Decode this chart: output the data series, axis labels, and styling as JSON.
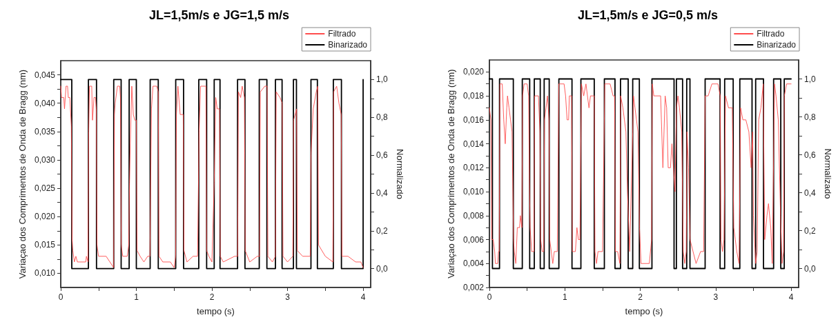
{
  "chart_data": [
    {
      "type": "line",
      "title": "JL=1,5m/s e JG=1,5 m/s",
      "xlabel": "tempo (s)",
      "ylabel": "Variaçao dos Comprimentos de Onda de Bragg (nm)",
      "y2label": "Normalizado",
      "legend": "top right",
      "grid": false,
      "marker": "none",
      "xlim": [
        0,
        4.1
      ],
      "xticks": [
        0,
        {
          "value": 0.5,
          "label": null
        },
        1,
        {
          "value": 1.5,
          "label": null
        },
        2,
        {
          "value": 2.5,
          "label": null
        },
        3,
        {
          "value": 3.5,
          "label": null
        },
        4
      ],
      "ylim": [
        0.0075,
        0.0475
      ],
      "yticks": [
        {
          "value": 0.01,
          "label": "0,010"
        },
        {
          "value": 0.0125,
          "label": null
        },
        {
          "value": 0.015,
          "label": "0,015"
        },
        {
          "value": 0.0175,
          "label": null
        },
        {
          "value": 0.02,
          "label": "0,020"
        },
        {
          "value": 0.0225,
          "label": null
        },
        {
          "value": 0.025,
          "label": "0,025"
        },
        {
          "value": 0.0275,
          "label": null
        },
        {
          "value": 0.03,
          "label": "0,030"
        },
        {
          "value": 0.0325,
          "label": null
        },
        {
          "value": 0.035,
          "label": "0,035"
        },
        {
          "value": 0.0375,
          "label": null
        },
        {
          "value": 0.04,
          "label": "0,040"
        },
        {
          "value": 0.0425,
          "label": null
        },
        {
          "value": 0.045,
          "label": "0,045"
        }
      ],
      "y2lim": [
        -0.1,
        1.1
      ],
      "y2ticks": [
        {
          "value": 0,
          "label": "0,0"
        },
        {
          "value": 0.1,
          "label": null
        },
        {
          "value": 0.2,
          "label": "0,2"
        },
        {
          "value": 0.3,
          "label": null
        },
        {
          "value": 0.4,
          "label": "0,4"
        },
        {
          "value": 0.5,
          "label": null
        },
        {
          "value": 0.6,
          "label": "0,6"
        },
        {
          "value": 0.7,
          "label": null
        },
        {
          "value": 0.8,
          "label": "0,8"
        },
        {
          "value": 0.9,
          "label": null
        },
        {
          "value": 1,
          "label": "1,0"
        }
      ],
      "series": [
        {
          "name": "Filtrado",
          "type": "line",
          "color": "#ff4d4d",
          "x": [
            0,
            0.01,
            0.04,
            0.05,
            0.07,
            0.09,
            0.1,
            0.12,
            0.14,
            0.15,
            0.16,
            0.18,
            0.2,
            0.22,
            0.33,
            0.34,
            0.36,
            0.37,
            0.38,
            0.41,
            0.42,
            0.44,
            0.46,
            0.47,
            0.48,
            0.5,
            0.6,
            0.65,
            0.7,
            0.71,
            0.72,
            0.75,
            0.78,
            0.79,
            0.8,
            0.82,
            0.88,
            0.9,
            0.91,
            0.92,
            0.94,
            0.96,
            0.98,
            1.0,
            1.01,
            1.05,
            1.1,
            1.15,
            1.18,
            1.2,
            1.22,
            1.27,
            1.29,
            1.3,
            1.35,
            1.45,
            1.5,
            1.52,
            1.53,
            1.55,
            1.58,
            1.62,
            1.63,
            1.67,
            1.75,
            1.81,
            1.83,
            1.85,
            1.92,
            1.93,
            1.96,
            2.0,
            2.03,
            2.05,
            2.07,
            2.1,
            2.11,
            2.15,
            2.3,
            2.34,
            2.35,
            2.38,
            2.4,
            2.43,
            2.44,
            2.5,
            2.6,
            2.63,
            2.64,
            2.7,
            2.73,
            2.74,
            2.8,
            2.84,
            2.85,
            2.9,
            2.93,
            2.94,
            3.0,
            3.07,
            3.08,
            3.12,
            3.13,
            3.2,
            3.3,
            3.31,
            3.34,
            3.38,
            3.4,
            3.41,
            3.5,
            3.6,
            3.61,
            3.65,
            3.68,
            3.71,
            3.72,
            3.8,
            3.9,
            3.97,
            4.0
          ],
          "values": [
            0.043,
            0.041,
            0.041,
            0.039,
            0.043,
            0.043,
            0.041,
            0.041,
            0.036,
            0.016,
            0.014,
            0.012,
            0.013,
            0.012,
            0.012,
            0.013,
            0.012,
            0.035,
            0.043,
            0.043,
            0.037,
            0.041,
            0.041,
            0.039,
            0.015,
            0.013,
            0.013,
            0.012,
            0.011,
            0.038,
            0.04,
            0.043,
            0.043,
            0.041,
            0.015,
            0.013,
            0.013,
            0.015,
            0.026,
            0.033,
            0.043,
            0.038,
            0.037,
            0.037,
            0.014,
            0.013,
            0.012,
            0.013,
            0.013,
            0.039,
            0.043,
            0.043,
            0.042,
            0.013,
            0.012,
            0.012,
            0.011,
            0.013,
            0.038,
            0.043,
            0.038,
            0.038,
            0.014,
            0.012,
            0.013,
            0.013,
            0.035,
            0.043,
            0.043,
            0.014,
            0.013,
            0.012,
            0.026,
            0.041,
            0.039,
            0.039,
            0.013,
            0.012,
            0.013,
            0.013,
            0.042,
            0.041,
            0.043,
            0.041,
            0.014,
            0.012,
            0.013,
            0.013,
            0.042,
            0.043,
            0.043,
            0.013,
            0.012,
            0.013,
            0.042,
            0.041,
            0.04,
            0.013,
            0.012,
            0.013,
            0.037,
            0.039,
            0.014,
            0.013,
            0.013,
            0.031,
            0.039,
            0.042,
            0.043,
            0.015,
            0.013,
            0.012,
            0.042,
            0.043,
            0.04,
            0.038,
            0.013,
            0.013,
            0.012,
            0.012,
            0.011
          ]
        },
        {
          "name": "Binarizado",
          "type": "step",
          "axis": "y2",
          "color": "#000000",
          "x": [
            0,
            0.146,
            0.366,
            0.473,
            0.701,
            0.799,
            0.905,
            1.0,
            1.183,
            1.29,
            1.521,
            1.625,
            1.826,
            1.93,
            2.03,
            2.107,
            2.339,
            2.437,
            2.626,
            2.727,
            2.84,
            2.928,
            3.078,
            3.118,
            3.31,
            3.395,
            3.606,
            3.713,
            4.0
          ],
          "values": [
            1,
            0,
            1,
            0,
            1,
            0,
            1,
            0,
            1,
            0,
            1,
            0,
            1,
            0,
            1,
            0,
            1,
            0,
            1,
            0,
            1,
            0,
            1,
            0,
            1,
            0,
            1,
            0,
            1
          ]
        }
      ]
    },
    {
      "type": "line",
      "title": "JL=1,5m/s e JG=0,5 m/s",
      "xlabel": "tempo (s)",
      "ylabel": "Variaçao dos Comprimentos de Onda de Bragg (nm)",
      "y2label": "Normalizado",
      "legend": "top right",
      "grid": false,
      "marker": "none",
      "xlim": [
        0,
        4.1
      ],
      "xticks": [
        0,
        {
          "value": 0.5,
          "label": null
        },
        1,
        {
          "value": 1.5,
          "label": null
        },
        2,
        {
          "value": 2.5,
          "label": null
        },
        3,
        {
          "value": 3.5,
          "label": null
        },
        4
      ],
      "ylim": [
        0.002,
        0.021
      ],
      "yticks": [
        {
          "value": 0.002,
          "label": "0,002"
        },
        {
          "value": 0.003,
          "label": null
        },
        {
          "value": 0.004,
          "label": "0,004"
        },
        {
          "value": 0.005,
          "label": null
        },
        {
          "value": 0.006,
          "label": "0,006"
        },
        {
          "value": 0.007,
          "label": null
        },
        {
          "value": 0.008,
          "label": "0,008"
        },
        {
          "value": 0.009,
          "label": null
        },
        {
          "value": 0.01,
          "label": "0,010"
        },
        {
          "value": 0.011,
          "label": null
        },
        {
          "value": 0.012,
          "label": "0,012"
        },
        {
          "value": 0.013,
          "label": null
        },
        {
          "value": 0.014,
          "label": "0,014"
        },
        {
          "value": 0.015,
          "label": null
        },
        {
          "value": 0.016,
          "label": "0,016"
        },
        {
          "value": 0.017,
          "label": null
        },
        {
          "value": 0.018,
          "label": "0,018"
        },
        {
          "value": 0.019,
          "label": null
        },
        {
          "value": 0.02,
          "label": "0,020"
        }
      ],
      "y2lim": [
        -0.1,
        1.1
      ],
      "y2ticks": [
        {
          "value": 0,
          "label": "0,0"
        },
        {
          "value": 0.1,
          "label": null
        },
        {
          "value": 0.2,
          "label": "0,2"
        },
        {
          "value": 0.3,
          "label": null
        },
        {
          "value": 0.4,
          "label": "0,4"
        },
        {
          "value": 0.5,
          "label": null
        },
        {
          "value": 0.6,
          "label": "0,6"
        },
        {
          "value": 0.7,
          "label": null
        },
        {
          "value": 0.8,
          "label": "0,8"
        },
        {
          "value": 0.9,
          "label": null
        },
        {
          "value": 1,
          "label": "1,0"
        }
      ],
      "series": [
        {
          "name": "Filtrado",
          "type": "line",
          "color": "#ff4d4d",
          "x": [
            0,
            0.02,
            0.03,
            0.05,
            0.07,
            0.08,
            0.11,
            0.12,
            0.13,
            0.14,
            0.17,
            0.19,
            0.21,
            0.23,
            0.24,
            0.26,
            0.28,
            0.3,
            0.32,
            0.33,
            0.35,
            0.37,
            0.4,
            0.41,
            0.43,
            0.44,
            0.46,
            0.5,
            0.52,
            0.53,
            0.54,
            0.56,
            0.59,
            0.6,
            0.65,
            0.67,
            0.68,
            0.7,
            0.72,
            0.73,
            0.75,
            0.77,
            0.79,
            0.8,
            0.82,
            0.84,
            0.86,
            0.9,
            0.92,
            0.99,
            1.01,
            1.03,
            1.05,
            1.06,
            1.09,
            1.1,
            1.14,
            1.16,
            1.18,
            1.2,
            1.22,
            1.25,
            1.28,
            1.32,
            1.34,
            1.39,
            1.4,
            1.42,
            1.44,
            1.5,
            1.53,
            1.6,
            1.64,
            1.66,
            1.67,
            1.7,
            1.73,
            1.74,
            1.77,
            1.79,
            1.81,
            1.83,
            1.86,
            1.9,
            1.91,
            1.93,
            1.95,
            1.97,
            1.99,
            2.01,
            2.04,
            2.12,
            2.15,
            2.16,
            2.18,
            2.27,
            2.28,
            2.3,
            2.33,
            2.35,
            2.37,
            2.4,
            2.42,
            2.44,
            2.46,
            2.48,
            2.5,
            2.52,
            2.55,
            2.57,
            2.59,
            2.61,
            2.62,
            2.64,
            2.66,
            2.7,
            2.74,
            2.8,
            2.84,
            2.86,
            2.9,
            2.95,
            3.03,
            3.06,
            3.07,
            3.09,
            3.11,
            3.13,
            3.17,
            3.22,
            3.24,
            3.26,
            3.28,
            3.31,
            3.33,
            3.36,
            3.4,
            3.44,
            3.47,
            3.49,
            3.5,
            3.53,
            3.55,
            3.57,
            3.6,
            3.63,
            3.65,
            3.68,
            3.7,
            3.73,
            3.75,
            3.78,
            3.8,
            3.83,
            3.86,
            3.88,
            3.9,
            3.91,
            3.94,
            4.0
          ],
          "values": [
            0.017,
            0.016,
            0.006,
            0.006,
            0.005,
            0.004,
            0.004,
            0.005,
            0.005,
            0.019,
            0.019,
            0.016,
            0.014,
            0.017,
            0.018,
            0.017,
            0.016,
            0.015,
            0.006,
            0.005,
            0.004,
            0.007,
            0.007,
            0.008,
            0.007,
            0.018,
            0.019,
            0.019,
            0.018,
            0.011,
            0.007,
            0.005,
            0.005,
            0.018,
            0.018,
            0.015,
            0.006,
            0.005,
            0.005,
            0.016,
            0.017,
            0.018,
            0.016,
            0.006,
            0.005,
            0.004,
            0.005,
            0.005,
            0.019,
            0.019,
            0.018,
            0.016,
            0.016,
            0.018,
            0.018,
            0.005,
            0.005,
            0.007,
            0.006,
            0.006,
            0.019,
            0.018,
            0.019,
            0.017,
            0.018,
            0.018,
            0.005,
            0.004,
            0.005,
            0.005,
            0.019,
            0.019,
            0.018,
            0.018,
            0.005,
            0.005,
            0.004,
            0.018,
            0.017,
            0.016,
            0.015,
            0.01,
            0.005,
            0.015,
            0.018,
            0.017,
            0.016,
            0.015,
            0.007,
            0.004,
            0.004,
            0.004,
            0.006,
            0.019,
            0.018,
            0.018,
            0.016,
            0.012,
            0.018,
            0.017,
            0.012,
            0.012,
            0.014,
            0.012,
            0.01,
            0.017,
            0.018,
            0.017,
            0.015,
            0.005,
            0.004,
            0.005,
            0.015,
            0.012,
            0.006,
            0.005,
            0.004,
            0.005,
            0.005,
            0.018,
            0.018,
            0.019,
            0.019,
            0.018,
            0.006,
            0.005,
            0.006,
            0.018,
            0.017,
            0.017,
            0.007,
            0.006,
            0.005,
            0.004,
            0.017,
            0.016,
            0.016,
            0.015,
            0.012,
            0.015,
            0.008,
            0.004,
            0.005,
            0.016,
            0.017,
            0.019,
            0.006,
            0.008,
            0.009,
            0.007,
            0.004,
            0.019,
            0.018,
            0.016,
            0.008,
            0.004,
            0.005,
            0.018,
            0.019,
            0.019
          ]
        },
        {
          "name": "Binarizado",
          "type": "step",
          "axis": "y2",
          "color": "#000000",
          "x": [
            0,
            0.04,
            0.134,
            0.317,
            0.436,
            0.534,
            0.595,
            0.674,
            0.726,
            0.793,
            0.921,
            1.095,
            1.213,
            1.39,
            1.524,
            1.665,
            1.738,
            1.84,
            1.9,
            1.988,
            2.155,
            2.448,
            2.479,
            2.561,
            2.616,
            2.659,
            2.86,
            3.058,
            3.119,
            3.232,
            3.32,
            3.482,
            3.53,
            3.634,
            3.768,
            3.863,
            3.909,
            4.0
          ],
          "values": [
            1,
            0,
            1,
            0,
            1,
            0,
            1,
            0,
            1,
            0,
            1,
            0,
            1,
            0,
            1,
            0,
            1,
            0,
            1,
            0,
            1,
            0,
            1,
            0,
            1,
            0,
            1,
            0,
            1,
            0,
            1,
            0,
            1,
            0,
            1,
            0,
            1,
            1
          ]
        }
      ]
    }
  ]
}
